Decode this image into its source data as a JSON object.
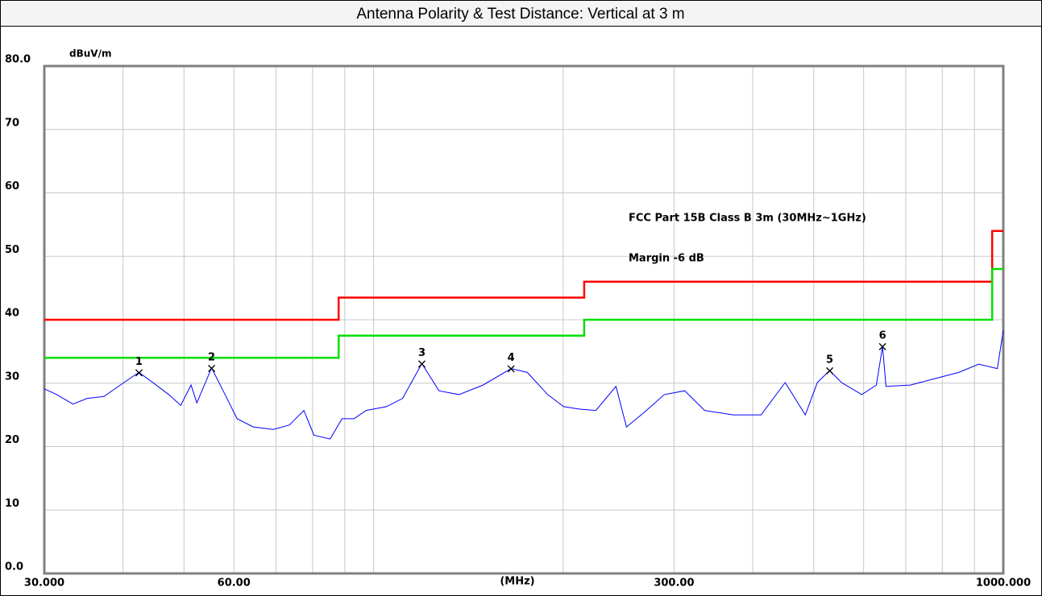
{
  "chart_data": {
    "type": "line",
    "title": "Antenna Polarity & Test Distance: Vertical at 3 m",
    "ylabel": "dBuV/m",
    "xlabel": "(MHz)",
    "xscale": "log",
    "xlim": [
      30,
      1000
    ],
    "ylim": [
      0,
      80
    ],
    "xticks": [
      {
        "value": 30,
        "label": "30.000"
      },
      {
        "value": 60,
        "label": "60.00"
      },
      {
        "value": 300,
        "label": "300.00"
      },
      {
        "value": 1000,
        "label": "1000.000"
      }
    ],
    "xgrid": [
      40,
      50,
      60,
      70,
      80,
      90,
      100,
      200,
      300,
      400,
      500,
      600,
      700,
      800,
      900
    ],
    "yticks": [
      {
        "value": 0,
        "label": "0.0"
      },
      10,
      20,
      30,
      40,
      50,
      60,
      70,
      {
        "value": 80,
        "label": "80.0"
      }
    ],
    "grid": true,
    "series": [
      {
        "name": "FCC Part 15B Class B 3m (30MHz~1GHz)",
        "color": "#ff0000",
        "x": [
          30,
          88,
          88,
          216,
          216,
          960,
          960,
          1000
        ],
        "values": [
          40,
          40,
          43.5,
          43.5,
          46,
          46,
          54,
          54
        ]
      },
      {
        "name": "Margin -6 dB",
        "color": "#00e000",
        "x": [
          30,
          88,
          88,
          216,
          216,
          960,
          960,
          1000
        ],
        "values": [
          34,
          34,
          37.5,
          37.5,
          40,
          40,
          48,
          48
        ]
      },
      {
        "color": "#0000ff",
        "x": [
          30,
          31.4,
          33.3,
          35.1,
          37.3,
          39.6,
          42.4,
          44.6,
          47.3,
          49.4,
          51.3,
          52.4,
          55.3,
          58.1,
          60.7,
          64.4,
          69.3,
          73.5,
          77.5,
          80.4,
          85.3,
          89.1,
          93.1,
          97.3,
          104.8,
          111.2,
          119.3,
          127.0,
          136.6,
          149.2,
          165.3,
          175.4,
          189.0,
          200.4,
          212.5,
          225.4,
          242.6,
          252.1,
          269.0,
          289.5,
          311.9,
          335.5,
          372.0,
          412.4,
          450.4,
          484.8,
          506.6,
          530,
          553.4,
          596.0,
          628.6,
          643,
          651.2,
          711.6,
          777.4,
          849.5,
          913.9,
          978.3,
          1000
        ],
        "values": [
          29.1,
          28.2,
          26.7,
          27.6,
          27.9,
          29.7,
          31.7,
          30.1,
          28.2,
          26.5,
          29.7,
          26.9,
          32.4,
          28.2,
          24.4,
          23.1,
          22.7,
          23.4,
          25.7,
          21.8,
          21.2,
          24.4,
          24.4,
          25.7,
          26.3,
          27.6,
          33.1,
          28.8,
          28.2,
          29.7,
          32.3,
          31.7,
          28.2,
          26.3,
          25.9,
          25.7,
          29.5,
          23.1,
          25.4,
          28.2,
          28.8,
          25.7,
          25.0,
          25.0,
          30.1,
          25.0,
          30.1,
          32.0,
          30.1,
          28.2,
          29.7,
          35.8,
          29.5,
          29.7,
          30.7,
          31.7,
          33.0,
          32.3,
          38.3
        ]
      }
    ],
    "markers": {
      "labels": [
        "1",
        "2",
        "3",
        "4",
        "5",
        "6"
      ],
      "x": [
        42.4,
        55.3,
        119.3,
        165.3,
        530,
        643
      ],
      "values": [
        31.7,
        32.4,
        33.1,
        32.3,
        32.0,
        35.8
      ]
    }
  }
}
